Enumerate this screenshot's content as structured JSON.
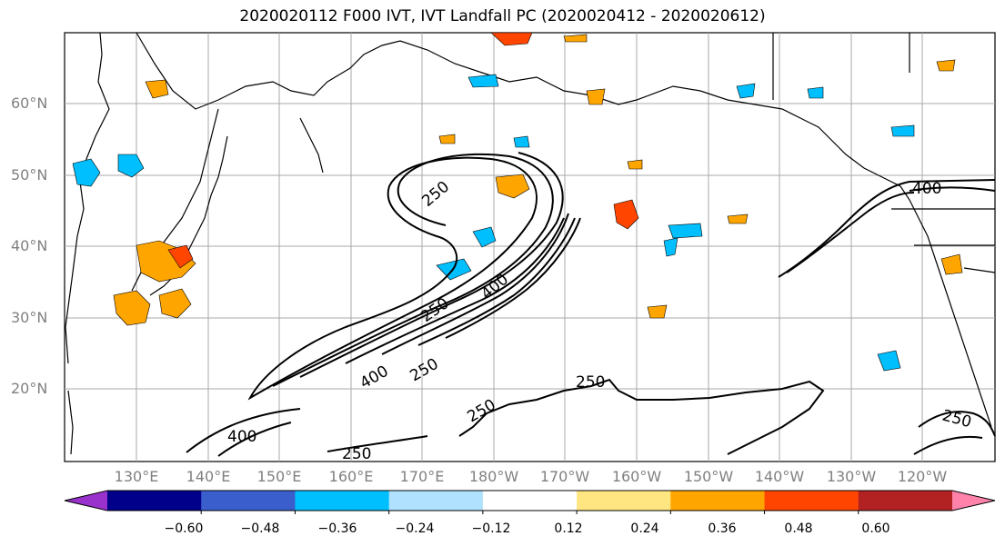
{
  "title": "2020020112 F000 IVT, IVT Landfall PC (2020020412 - 2020020612)",
  "lat_labels": [
    "60°N",
    "50°N",
    "40°N",
    "30°N",
    "20°N"
  ],
  "lon_labels": [
    "130°E",
    "140°E",
    "150°E",
    "160°E",
    "170°E",
    "180°W",
    "170°W",
    "160°W",
    "150°W",
    "140°W",
    "130°W",
    "120°W"
  ],
  "contour_labels": [
    "250",
    "400",
    "250",
    "250",
    "400",
    "250",
    "400",
    "400",
    "250",
    "250",
    "250"
  ],
  "colorbar": {
    "ticks": [
      "−0.60",
      "−0.48",
      "−0.36",
      "−0.24",
      "−0.12",
      "0.12",
      "0.24",
      "0.36",
      "0.48",
      "0.60"
    ],
    "colors": [
      "#9932cc",
      "#00008b",
      "#3a5fcd",
      "#00bfff",
      "#b0e2ff",
      "#ffffff",
      "#ffe680",
      "#ffa500",
      "#ff4500",
      "#b22222",
      "#ff82ab"
    ]
  }
}
